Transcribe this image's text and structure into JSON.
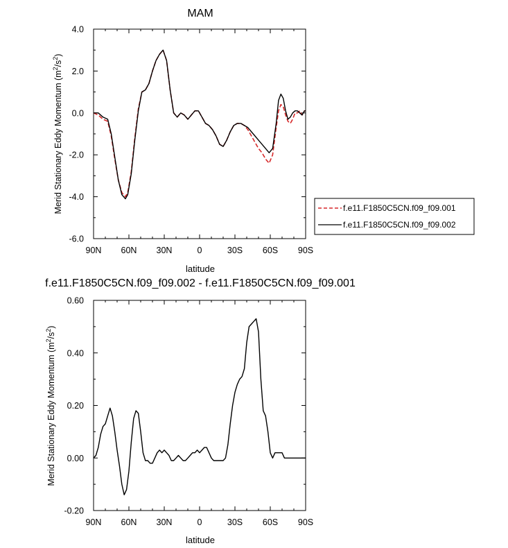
{
  "chart_data": [
    {
      "type": "line",
      "title": "MAM",
      "xlabel": "latitude",
      "ylabel": "Merid Stationary Eddy Momentum (m2/s2)",
      "ylabel_main": "Merid Stationary Eddy Momentum (m",
      "ylabel_sup1": "2",
      "ylabel_mid": "/s",
      "ylabel_sup2": "2",
      "ylabel_end": ")",
      "xlim": [
        90,
        -90
      ],
      "ylim": [
        -6.0,
        4.0
      ],
      "xticks": [
        90,
        60,
        30,
        0,
        -30,
        -60,
        -90
      ],
      "xtick_labels": [
        "90N",
        "60N",
        "30N",
        "0",
        "30S",
        "60S",
        "90S"
      ],
      "yticks": [
        4.0,
        2.0,
        0.0,
        -2.0,
        -4.0,
        -6.0
      ],
      "ytick_labels": [
        "4.0",
        "2.0",
        "0.0",
        "-2.0",
        "-4.0",
        "-6.0"
      ],
      "legend_position": "outside-right",
      "series": [
        {
          "name": "f.e11.F1850C5CN.f09_f09.001",
          "color": "#d62728",
          "dash": "dashed",
          "x": [
            90,
            86,
            82,
            78,
            75,
            72,
            69,
            66,
            63,
            61,
            58,
            55,
            52,
            49,
            46,
            43,
            40,
            37,
            34,
            31,
            28,
            25,
            22,
            19,
            16,
            13,
            10,
            7,
            4,
            1,
            -2,
            -5,
            -8,
            -11,
            -14,
            -17,
            -20,
            -23,
            -26,
            -29,
            -32,
            -35,
            -38,
            -41,
            -44,
            -47,
            -50,
            -53,
            -56,
            -59,
            -62,
            -65,
            -67,
            -69,
            -71,
            -73,
            -75,
            -77,
            -79,
            -81,
            -83,
            -85,
            -87,
            -89,
            -90
          ],
          "y": [
            0.0,
            -0.1,
            -0.3,
            -0.4,
            -1.1,
            -2.2,
            -3.2,
            -3.8,
            -4.0,
            -3.8,
            -2.8,
            -1.2,
            0.2,
            1.0,
            1.1,
            1.4,
            2.0,
            2.5,
            2.8,
            3.0,
            2.5,
            1.1,
            0.0,
            -0.2,
            0.0,
            -0.1,
            -0.3,
            -0.1,
            0.1,
            0.1,
            -0.2,
            -0.5,
            -0.6,
            -0.8,
            -1.1,
            -1.5,
            -1.6,
            -1.3,
            -0.9,
            -0.6,
            -0.5,
            -0.5,
            -0.6,
            -0.8,
            -1.1,
            -1.4,
            -1.7,
            -1.9,
            -2.2,
            -2.4,
            -2.0,
            -0.7,
            0.1,
            0.4,
            0.3,
            -0.1,
            -0.4,
            -0.5,
            -0.3,
            0.0,
            0.0,
            0.1,
            -0.1,
            0.1,
            0.1
          ]
        },
        {
          "name": "f.e11.F1850C5CN.f09_f09.002",
          "color": "#000000",
          "dash": "solid",
          "x": [
            90,
            86,
            82,
            78,
            75,
            72,
            69,
            66,
            63,
            61,
            58,
            55,
            52,
            49,
            46,
            43,
            40,
            37,
            34,
            31,
            28,
            25,
            22,
            19,
            16,
            13,
            10,
            7,
            4,
            1,
            -2,
            -5,
            -8,
            -11,
            -14,
            -17,
            -20,
            -23,
            -26,
            -29,
            -32,
            -35,
            -38,
            -41,
            -44,
            -47,
            -50,
            -53,
            -56,
            -59,
            -62,
            -65,
            -67,
            -69,
            -71,
            -73,
            -75,
            -77,
            -79,
            -81,
            -83,
            -85,
            -87,
            -89,
            -90
          ],
          "y": [
            0.0,
            0.0,
            -0.2,
            -0.3,
            -1.0,
            -2.1,
            -3.2,
            -3.9,
            -4.1,
            -3.9,
            -2.9,
            -1.3,
            0.1,
            1.0,
            1.1,
            1.4,
            2.0,
            2.5,
            2.8,
            3.0,
            2.5,
            1.1,
            0.0,
            -0.2,
            0.0,
            -0.1,
            -0.3,
            -0.1,
            0.1,
            0.1,
            -0.2,
            -0.5,
            -0.6,
            -0.8,
            -1.1,
            -1.5,
            -1.6,
            -1.3,
            -0.9,
            -0.6,
            -0.5,
            -0.5,
            -0.6,
            -0.7,
            -0.9,
            -1.1,
            -1.3,
            -1.5,
            -1.7,
            -1.9,
            -1.7,
            -0.5,
            0.6,
            0.9,
            0.7,
            0.1,
            -0.3,
            -0.2,
            0.0,
            0.1,
            0.1,
            0.0,
            -0.1,
            0.1,
            0.1
          ]
        }
      ]
    },
    {
      "type": "line",
      "title": "f.e11.F1850C5CN.f09_f09.002 - f.e11.F1850C5CN.f09_f09.001",
      "xlabel": "latitude",
      "ylabel": "Merid Stationary Eddy Momentum (m2/s2)",
      "ylabel_main": "Merid Stationary Eddy Momentum (m",
      "ylabel_sup1": "2",
      "ylabel_mid": "/s",
      "ylabel_sup2": "2",
      "ylabel_end": ")",
      "xlim": [
        90,
        -90
      ],
      "ylim": [
        -0.2,
        0.6
      ],
      "xticks": [
        90,
        60,
        30,
        0,
        -30,
        -60,
        -90
      ],
      "xtick_labels": [
        "90N",
        "60N",
        "30N",
        "0",
        "30S",
        "60S",
        "90S"
      ],
      "yticks": [
        0.6,
        0.4,
        0.2,
        0.0,
        -0.2
      ],
      "ytick_labels": [
        "0.60",
        "0.40",
        "0.20",
        "0.00",
        "-0.20"
      ],
      "series": [
        {
          "color": "#000000",
          "dash": "solid",
          "x": [
            90,
            88,
            86,
            84,
            82,
            80,
            78,
            76,
            74,
            72,
            70,
            68,
            66,
            64,
            62,
            60,
            58,
            56,
            54,
            52,
            50,
            48,
            46,
            44,
            42,
            40,
            38,
            36,
            34,
            32,
            30,
            28,
            26,
            24,
            22,
            20,
            18,
            16,
            14,
            12,
            10,
            8,
            6,
            4,
            2,
            0,
            -2,
            -4,
            -6,
            -8,
            -10,
            -12,
            -14,
            -16,
            -18,
            -20,
            -22,
            -24,
            -26,
            -28,
            -30,
            -32,
            -34,
            -36,
            -38,
            -40,
            -42,
            -44,
            -46,
            -48,
            -50,
            -52,
            -54,
            -56,
            -58,
            -60,
            -62,
            -64,
            -66,
            -68,
            -70,
            -72,
            -74,
            -76,
            -78,
            -80,
            -82,
            -84,
            -86,
            -88,
            -89,
            -90
          ],
          "y": [
            0.0,
            0.01,
            0.04,
            0.09,
            0.12,
            0.13,
            0.16,
            0.19,
            0.16,
            0.1,
            0.03,
            -0.03,
            -0.1,
            -0.14,
            -0.12,
            -0.05,
            0.06,
            0.15,
            0.18,
            0.17,
            0.1,
            0.02,
            -0.01,
            -0.01,
            -0.02,
            -0.02,
            0.0,
            0.02,
            0.03,
            0.02,
            0.03,
            0.02,
            0.01,
            -0.01,
            -0.01,
            0.0,
            0.01,
            0.0,
            -0.01,
            -0.01,
            0.0,
            0.01,
            0.02,
            0.02,
            0.03,
            0.02,
            0.03,
            0.04,
            0.04,
            0.02,
            0.0,
            -0.01,
            -0.01,
            -0.01,
            -0.01,
            -0.01,
            0.0,
            0.05,
            0.13,
            0.2,
            0.25,
            0.28,
            0.3,
            0.31,
            0.34,
            0.44,
            0.5,
            0.51,
            0.52,
            0.53,
            0.48,
            0.3,
            0.18,
            0.16,
            0.1,
            0.02,
            0.0,
            0.02,
            0.02,
            0.02,
            0.02,
            0.0,
            0.0,
            0.0,
            0.0,
            0.0,
            0.0,
            0.0,
            0.0,
            0.0,
            0.0,
            0.0
          ]
        }
      ]
    }
  ]
}
